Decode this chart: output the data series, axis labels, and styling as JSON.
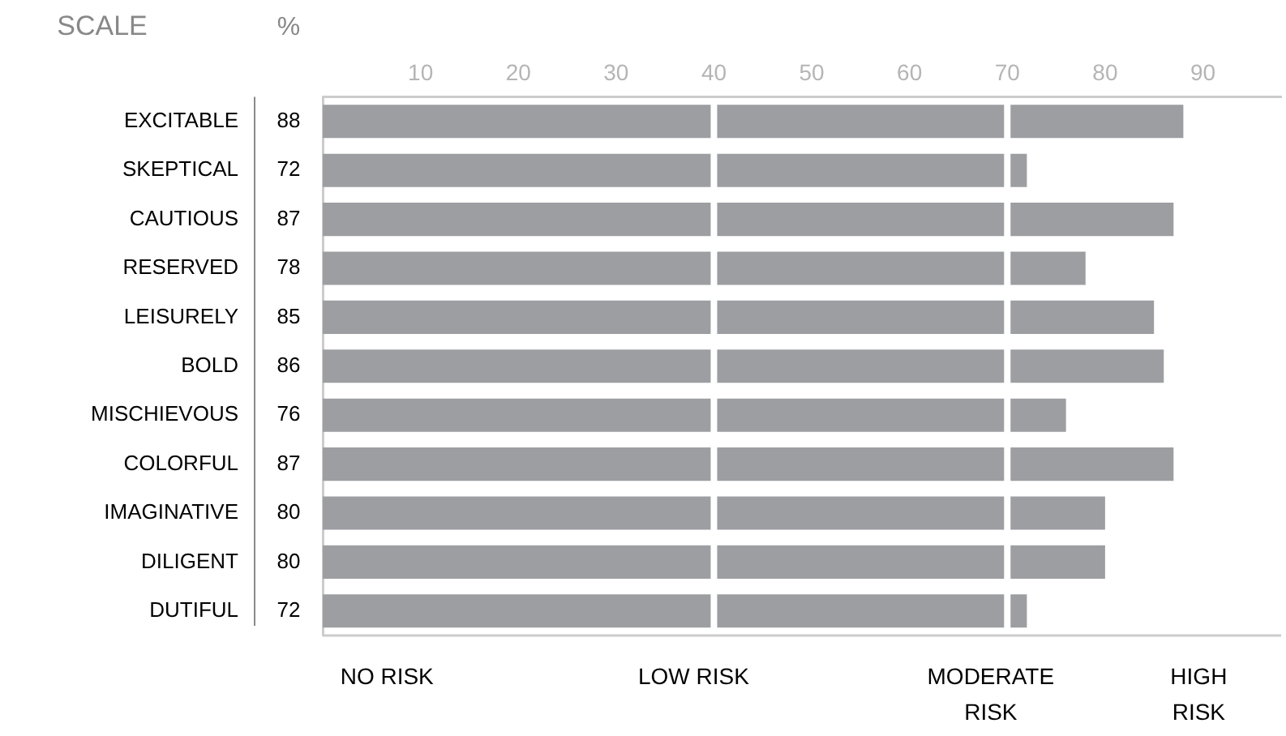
{
  "chart_data": {
    "type": "bar",
    "orientation": "horizontal",
    "ylabel": "SCALE",
    "categories": [
      "EXCITABLE",
      "SKEPTICAL",
      "CAUTIOUS",
      "RESERVED",
      "LEISURELY",
      "BOLD",
      "MISCHIEVOUS",
      "COLORFUL",
      "IMAGINATIVE",
      "DILIGENT",
      "DUTIFUL"
    ],
    "values": [
      88,
      72,
      87,
      78,
      85,
      86,
      76,
      87,
      80,
      80,
      72
    ],
    "color": "#9d9ea2",
    "data_labels": true,
    "grid": false,
    "legend": false,
    "xlim": [
      0,
      98
    ],
    "xticks": [
      10,
      20,
      30,
      40,
      50,
      60,
      70,
      80,
      90
    ],
    "ref_lines": [
      {
        "axis": "x",
        "value": 40,
        "color": "#ffffff"
      },
      {
        "axis": "x",
        "value": 70,
        "color": "#ffffff"
      }
    ],
    "annotations": [
      "%",
      "NO RISK",
      "LOW RISK",
      "MODERATE\nRISK",
      "HIGH\nRISK"
    ]
  }
}
